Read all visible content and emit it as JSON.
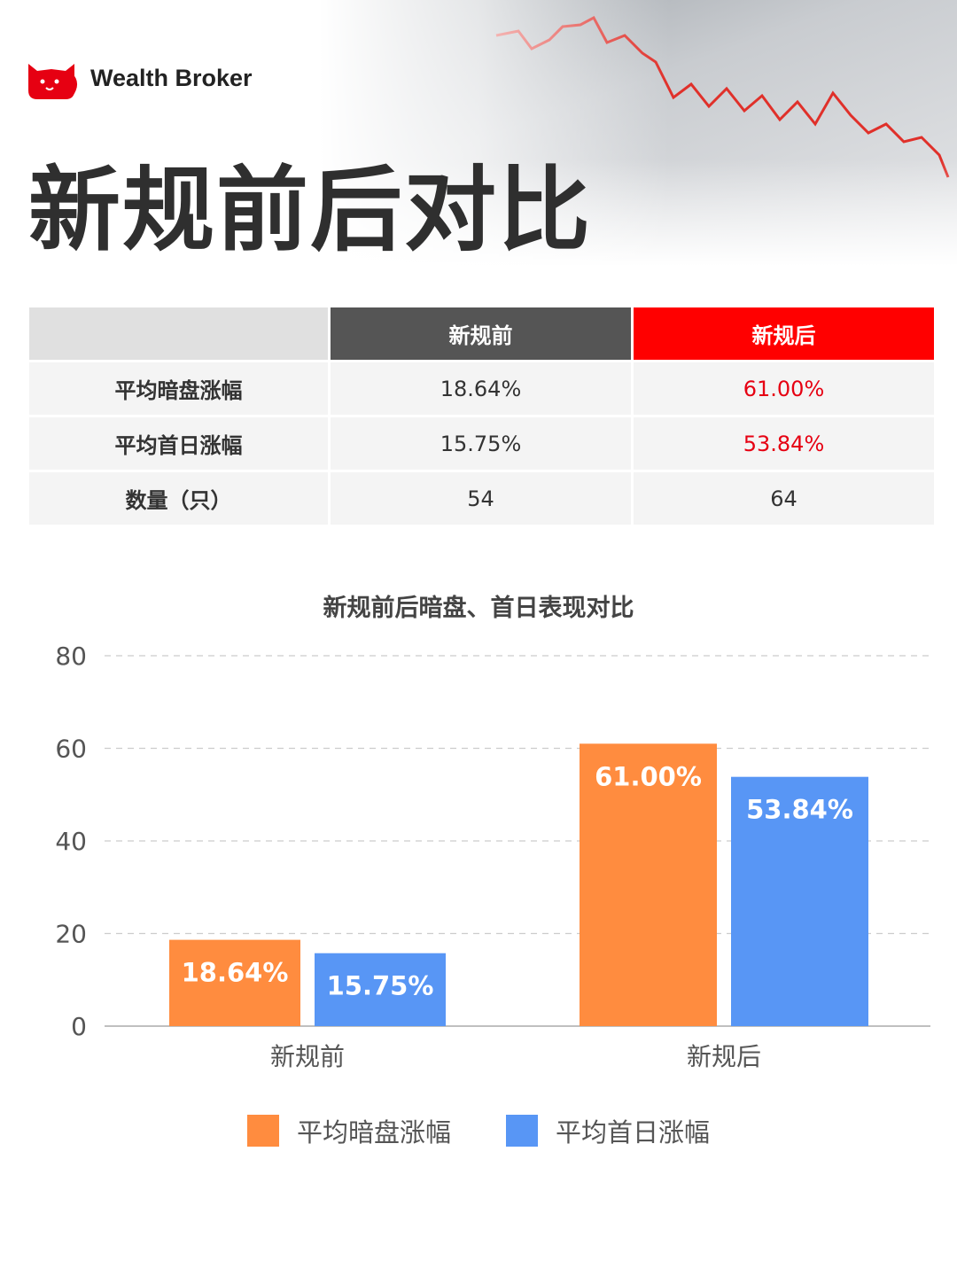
{
  "brand": {
    "name": "Wealth Broker",
    "logo_color": "#e60012"
  },
  "title": "新规前后对比",
  "table": {
    "headers": [
      "",
      "新规前",
      "新规后"
    ],
    "rows": [
      {
        "label": "平均暗盘涨幅",
        "before": "18.64%",
        "after": "61.00%"
      },
      {
        "label": "平均首日涨幅",
        "before": "15.75%",
        "after": "53.84%"
      },
      {
        "label": "数量（只）",
        "before": "54",
        "after": "64"
      }
    ]
  },
  "chart_data": {
    "type": "bar",
    "title": "新规前后暗盘、首日表现对比",
    "categories": [
      "新规前",
      "新规后"
    ],
    "series": [
      {
        "name": "平均暗盘涨幅",
        "values": [
          18.64,
          61.0
        ],
        "labels": [
          "18.64%",
          "61.00%"
        ],
        "color": "#ff8c3f"
      },
      {
        "name": "平均首日涨幅",
        "values": [
          15.75,
          53.84
        ],
        "labels": [
          "15.75%",
          "53.84%"
        ],
        "color": "#5896f5"
      }
    ],
    "ylim": [
      0,
      80
    ],
    "yticks": [
      "0",
      "20",
      "40",
      "60",
      "80"
    ],
    "grid": true,
    "legend": "bottom-center"
  }
}
